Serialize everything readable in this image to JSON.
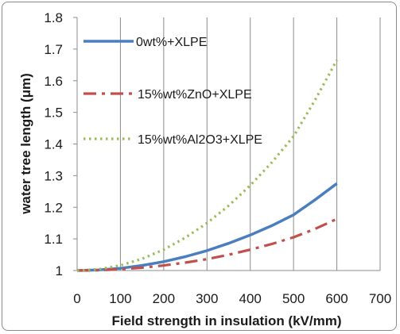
{
  "chart_data": {
    "type": "line",
    "title": "",
    "xlabel": "Field strength in insulation (kV/mm)",
    "ylabel": "water tree length (μm)",
    "xlim": [
      0,
      700
    ],
    "ylim": [
      1,
      1.8
    ],
    "xticks": [
      "0",
      "100",
      "200",
      "300",
      "400",
      "500",
      "600",
      "700"
    ],
    "yticks": [
      "1",
      "1.1",
      "1.2",
      "1.3",
      "1.4",
      "1.5",
      "1.6",
      "1.7",
      "1.8"
    ],
    "grid": "vertical",
    "legend_position": "top-left",
    "x": [
      0,
      50,
      100,
      150,
      200,
      250,
      300,
      350,
      400,
      450,
      500,
      550,
      600
    ],
    "series": [
      {
        "name": "0wt%+XLPE",
        "color": "#4a7ebf",
        "style": "solid",
        "values": [
          1.0,
          1.002,
          1.007,
          1.016,
          1.028,
          1.044,
          1.063,
          1.086,
          1.112,
          1.142,
          1.176,
          1.224,
          1.275
        ]
      },
      {
        "name": "15%wt%ZnO+XLPE",
        "color": "#c0504d",
        "style": "dashdot",
        "values": [
          1.0,
          1.001,
          1.004,
          1.009,
          1.016,
          1.025,
          1.036,
          1.05,
          1.066,
          1.084,
          1.105,
          1.132,
          1.163
        ]
      },
      {
        "name": "15%wt%Al2O3+XLPE",
        "color": "#9bbb59",
        "style": "dotted",
        "values": [
          1.0,
          1.004,
          1.016,
          1.037,
          1.066,
          1.104,
          1.15,
          1.205,
          1.269,
          1.342,
          1.424,
          1.54,
          1.665
        ]
      }
    ]
  }
}
